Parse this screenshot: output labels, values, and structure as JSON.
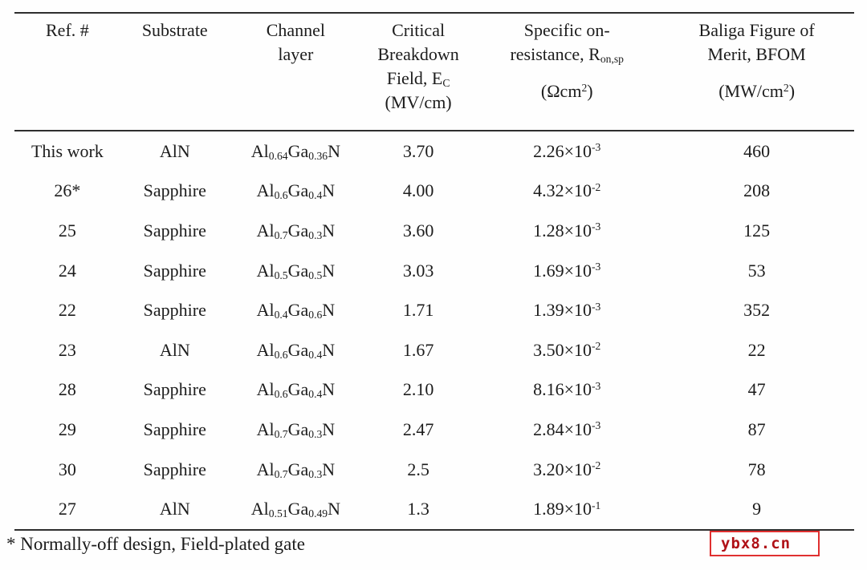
{
  "table": {
    "headers": [
      {
        "lines": [
          "Ref. #"
        ]
      },
      {
        "lines": [
          "Substrate"
        ]
      },
      {
        "lines": [
          "Channel",
          "layer"
        ]
      },
      {
        "lines": [
          "Critical",
          "Breakdown",
          "Field, E~C~",
          "(MV/cm)"
        ]
      },
      {
        "lines": [
          "Specific on-",
          "resistance, R~on,sp~",
          "",
          "(Ωcm^2^)"
        ]
      },
      {
        "lines": [
          "Baliga Figure of",
          "Merit, BFOM",
          "",
          "(MW/cm^2^)"
        ]
      }
    ],
    "rows": [
      [
        "This work",
        "AlN",
        "Al~0.64~Ga~0.36~N",
        "3.70",
        "2.26×10^-3^",
        "460"
      ],
      [
        "26*",
        "Sapphire",
        "Al~0.6~Ga~0.4~N",
        "4.00",
        "4.32×10^-2^",
        "208"
      ],
      [
        "25",
        "Sapphire",
        "Al~0.7~Ga~0.3~N",
        "3.60",
        "1.28×10^-3^",
        "125"
      ],
      [
        "24",
        "Sapphire",
        "Al~0.5~Ga~0.5~N",
        "3.03",
        "1.69×10^-3^",
        "53"
      ],
      [
        "22",
        "Sapphire",
        "Al~0.4~Ga~0.6~N",
        "1.71",
        "1.39×10^-3^",
        "352"
      ],
      [
        "23",
        "AlN",
        "Al~0.6~Ga~0.4~N",
        "1.67",
        "3.50×10^-2^",
        "22"
      ],
      [
        "28",
        "Sapphire",
        "Al~0.6~Ga~0.4~N",
        "2.10",
        "8.16×10^-3^",
        "47"
      ],
      [
        "29",
        "Sapphire",
        "Al~0.7~Ga~0.3~N",
        "2.47",
        "2.84×10^-3^",
        "87"
      ],
      [
        "30",
        "Sapphire",
        "Al~0.7~Ga~0.3~N",
        "2.5",
        "3.20×10^-2^",
        "78"
      ],
      [
        "27",
        "AlN",
        "Al~0.51~Ga~0.49~N",
        "1.3",
        "1.89×10^-1^",
        "9"
      ]
    ]
  },
  "footnote": "* Normally-off design, Field-plated gate",
  "watermark": "ybx8.cn",
  "colors": {
    "text": "#1c1c1c",
    "rule": "#2e2e2e",
    "background": "#fefefe",
    "watermark_text": "#b01218",
    "watermark_border": "#e03030"
  }
}
